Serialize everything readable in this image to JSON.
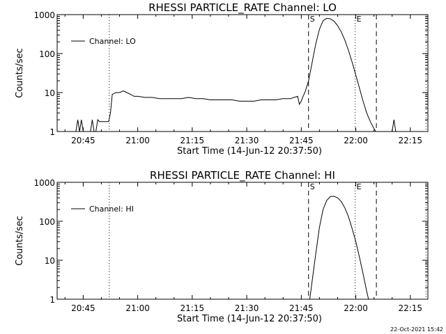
{
  "footer": {
    "timestamp": "22-Oct-2021 15:42"
  },
  "chart_data": [
    {
      "type": "line",
      "title": "RHESSI PARTICLE_RATE Channel: LO",
      "xlabel": "Start Time (14-Jun-12 20:37:50)",
      "ylabel": "Counts/sec",
      "legend": "Channel: LO",
      "legend_position": "top-left",
      "y_scale": "log",
      "ylim": [
        1,
        1000
      ],
      "xlim": [
        "20:37:50",
        "22:19:50"
      ],
      "x_ticks": [
        "20:45",
        "21:00",
        "21:15",
        "21:30",
        "21:45",
        "22:00",
        "22:15"
      ],
      "y_ticks": [
        "1",
        "10",
        "100",
        "1000"
      ],
      "markers": [
        {
          "time": "20:52:10",
          "style": "dotted",
          "label": ""
        },
        {
          "time": "21:47:00",
          "style": "dashed",
          "label": "S"
        },
        {
          "time": "21:59:50",
          "style": "dotted",
          "label": "E"
        },
        {
          "time": "22:05:40",
          "style": "dashed",
          "label": ""
        },
        {
          "time": "22:19:20",
          "style": "dotted",
          "label": ""
        }
      ],
      "series": [
        {
          "name": "Channel: LO",
          "x": [
            "20:43:00",
            "20:43:30",
            "20:44:00",
            "20:44:30",
            "20:45:00",
            "20:45:30",
            "20:46:00",
            "20:46:30",
            "20:47:00",
            "20:47:30",
            "20:48:00",
            "20:48:30",
            "20:49:00",
            "20:49:30",
            "20:50:00",
            "20:50:30",
            "20:51:00",
            "20:51:30",
            "20:52:00",
            "20:52:30",
            "20:53:00",
            "20:54:00",
            "20:55:00",
            "20:56:00",
            "20:57:00",
            "20:58:00",
            "20:59:00",
            "21:00:00",
            "21:02:00",
            "21:04:00",
            "21:06:00",
            "21:08:00",
            "21:10:00",
            "21:12:00",
            "21:14:00",
            "21:16:00",
            "21:18:00",
            "21:20:00",
            "21:22:00",
            "21:24:00",
            "21:26:00",
            "21:28:00",
            "21:30:00",
            "21:32:00",
            "21:34:00",
            "21:36:00",
            "21:38:00",
            "21:40:00",
            "21:42:00",
            "21:44:00",
            "21:44:30",
            "21:45:00",
            "21:45:30",
            "21:46:00",
            "21:47:00",
            "21:48:00",
            "21:49:00",
            "21:50:00",
            "21:51:00",
            "21:52:00",
            "21:53:00",
            "21:54:00",
            "21:55:00",
            "21:56:00",
            "21:57:00",
            "21:58:00",
            "21:59:00",
            "22:00:00",
            "22:01:00",
            "22:02:00",
            "22:03:00",
            "22:04:00",
            "22:05:00",
            "22:05:30",
            "22:06:00",
            "22:06:30",
            "22:07:00",
            "22:08:00",
            "22:09:00",
            "22:10:00",
            "22:10:30",
            "22:11:00",
            "22:11:30",
            "22:12:00"
          ],
          "values": [
            1,
            2,
            1,
            2,
            1,
            1,
            1,
            1,
            1,
            2,
            1,
            1,
            2,
            1.8,
            1.8,
            1.8,
            1.8,
            1.8,
            1.8,
            3,
            9,
            10,
            10,
            11,
            10,
            9,
            8,
            8,
            7.5,
            7.5,
            7,
            7,
            7,
            7,
            7.5,
            7,
            7,
            6.5,
            6.5,
            6.5,
            6.5,
            6,
            6,
            6,
            6.5,
            6.5,
            6.5,
            7,
            7,
            8,
            5,
            6,
            8,
            10,
            20,
            60,
            180,
            420,
            700,
            800,
            780,
            680,
            520,
            360,
            220,
            120,
            60,
            28,
            13,
            6,
            3,
            1.8,
            1.2,
            1,
            1,
            1,
            1,
            1,
            1,
            1,
            2,
            1,
            1,
            1
          ]
        }
      ]
    },
    {
      "type": "line",
      "title": "RHESSI PARTICLE_RATE Channel: HI",
      "xlabel": "Start Time (14-Jun-12 20:37:50)",
      "ylabel": "Counts/sec",
      "legend": "Channel: HI",
      "legend_position": "top-left",
      "y_scale": "log",
      "ylim": [
        1,
        1000
      ],
      "xlim": [
        "20:37:50",
        "22:19:50"
      ],
      "x_ticks": [
        "20:45",
        "21:00",
        "21:15",
        "21:30",
        "21:45",
        "22:00",
        "22:15"
      ],
      "y_ticks": [
        "1",
        "10",
        "100",
        "1000"
      ],
      "markers": [
        {
          "time": "20:52:10",
          "style": "dotted",
          "label": ""
        },
        {
          "time": "21:47:00",
          "style": "dashed",
          "label": "S"
        },
        {
          "time": "21:59:50",
          "style": "dotted",
          "label": "E"
        },
        {
          "time": "22:05:40",
          "style": "dashed",
          "label": ""
        },
        {
          "time": "22:19:20",
          "style": "dotted",
          "label": ""
        }
      ],
      "series": [
        {
          "name": "Channel: HI",
          "x": [
            "21:47:20",
            "21:48:00",
            "21:49:00",
            "21:50:00",
            "21:51:00",
            "21:52:00",
            "21:53:00",
            "21:54:00",
            "21:55:00",
            "21:56:00",
            "21:57:00",
            "21:58:00",
            "21:59:00",
            "22:00:00",
            "22:01:00",
            "22:02:00",
            "22:03:00",
            "22:03:30"
          ],
          "values": [
            1,
            3,
            15,
            70,
            200,
            340,
            430,
            440,
            400,
            320,
            220,
            130,
            65,
            30,
            12,
            4.5,
            1.6,
            1
          ]
        }
      ]
    }
  ]
}
